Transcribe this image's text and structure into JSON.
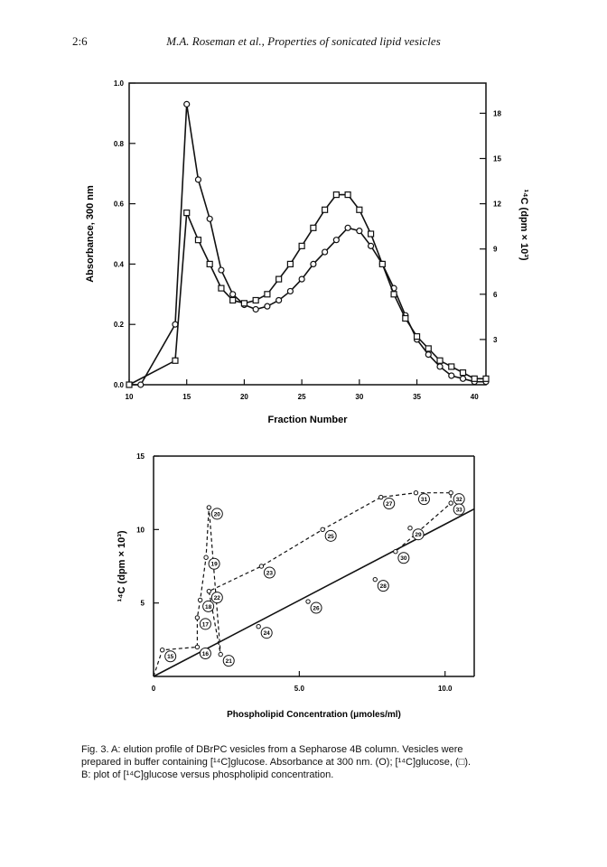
{
  "header": {
    "page_number": "2:6",
    "running_title": "M.A. Roseman et al., Properties of sonicated lipid vesicles"
  },
  "caption": {
    "line1": "Fig. 3. A: elution profile of DBrPC vesicles from a Sepharose 4B column. Vesicles were",
    "line2": "prepared in buffer containing [¹⁴C]glucose. Absorbance at 300 nm. (O); [¹⁴C]glucose, (□).",
    "line3": "B: plot of [¹⁴C]glucose versus phospholipid concentration."
  },
  "chart_data": [
    {
      "type": "line",
      "panel": "A",
      "xlabel": "Fraction Number",
      "ylabel": "Absorbance, 300 nm",
      "y2label": "¹⁴C (dpm × 10³)",
      "xlim": [
        10,
        41
      ],
      "ylim": [
        0,
        1.0
      ],
      "y2lim": [
        0,
        20
      ],
      "x_ticks": [
        "10",
        "15",
        "20",
        "25",
        "30",
        "35",
        "40"
      ],
      "y_ticks": [
        "0.0",
        "0.2",
        "0.4",
        "0.6",
        "0.8",
        "1.0"
      ],
      "y2_ticks": [
        "3",
        "6",
        "9",
        "12",
        "15",
        "18"
      ],
      "series": [
        {
          "marker": "circle",
          "x": [
            10,
            11,
            14,
            15,
            16,
            17,
            18,
            19,
            20,
            21,
            22,
            23,
            24,
            25,
            26,
            27,
            28,
            29,
            30,
            31,
            32,
            33,
            34,
            35,
            36,
            37,
            38,
            39,
            40,
            41
          ],
          "y": [
            0.0,
            0.0,
            0.2,
            0.93,
            0.68,
            0.55,
            0.38,
            0.3,
            0.265,
            0.25,
            0.26,
            0.28,
            0.31,
            0.35,
            0.4,
            0.44,
            0.48,
            0.52,
            0.51,
            0.46,
            0.4,
            0.32,
            0.23,
            0.15,
            0.1,
            0.06,
            0.03,
            0.02,
            0.01,
            0.01
          ]
        },
        {
          "marker": "square",
          "x": [
            10,
            14,
            15,
            16,
            17,
            18,
            19,
            20,
            21,
            22,
            23,
            24,
            25,
            26,
            27,
            28,
            29,
            30,
            31,
            32,
            33,
            34,
            35,
            36,
            37,
            38,
            39,
            40,
            41
          ],
          "y": [
            0.0,
            0.08,
            0.57,
            0.48,
            0.4,
            0.32,
            0.28,
            0.27,
            0.28,
            0.3,
            0.35,
            0.4,
            0.46,
            0.52,
            0.58,
            0.63,
            0.63,
            0.58,
            0.5,
            0.4,
            0.3,
            0.22,
            0.16,
            0.12,
            0.08,
            0.06,
            0.04,
            0.02,
            0.02
          ]
        }
      ]
    },
    {
      "type": "scatter",
      "panel": "B",
      "xlabel": "Phospholipid Concentration (μmoles/ml)",
      "ylabel": "¹⁴C (dpm × 10³)",
      "xlim": [
        0,
        11
      ],
      "ylim": [
        0,
        15
      ],
      "x_ticks": [
        "0",
        "5.0",
        "10.0"
      ],
      "y_ticks": [
        "5",
        "10",
        "15"
      ],
      "points": [
        {
          "label": "15",
          "x": 0.3,
          "y": 1.8
        },
        {
          "label": "16",
          "x": 1.5,
          "y": 2.0
        },
        {
          "label": "17",
          "x": 1.5,
          "y": 4.0
        },
        {
          "label": "18",
          "x": 1.6,
          "y": 5.2
        },
        {
          "label": "19",
          "x": 1.8,
          "y": 8.1
        },
        {
          "label": "20",
          "x": 1.9,
          "y": 11.5
        },
        {
          "label": "21",
          "x": 2.3,
          "y": 1.5
        },
        {
          "label": "22",
          "x": 1.9,
          "y": 5.8
        },
        {
          "label": "23",
          "x": 3.7,
          "y": 7.5
        },
        {
          "label": "24",
          "x": 3.6,
          "y": 3.4
        },
        {
          "label": "25",
          "x": 5.8,
          "y": 10.0
        },
        {
          "label": "26",
          "x": 5.3,
          "y": 5.1
        },
        {
          "label": "27",
          "x": 7.8,
          "y": 12.2
        },
        {
          "label": "28",
          "x": 7.6,
          "y": 6.6
        },
        {
          "label": "29",
          "x": 8.8,
          "y": 10.1
        },
        {
          "label": "30",
          "x": 8.3,
          "y": 8.5
        },
        {
          "label": "31",
          "x": 9.0,
          "y": 12.5
        },
        {
          "label": "32",
          "x": 10.2,
          "y": 12.5
        },
        {
          "label": "33",
          "x": 10.2,
          "y": 11.8
        }
      ],
      "dashed_curve_labels": [
        "15",
        "16",
        "17",
        "18",
        "19",
        "20",
        "21",
        "22",
        "23",
        "25",
        "27",
        "31",
        "32",
        "33",
        "30"
      ],
      "fit_line": {
        "x": [
          0,
          11
        ],
        "y": [
          0,
          11.4
        ]
      }
    }
  ]
}
